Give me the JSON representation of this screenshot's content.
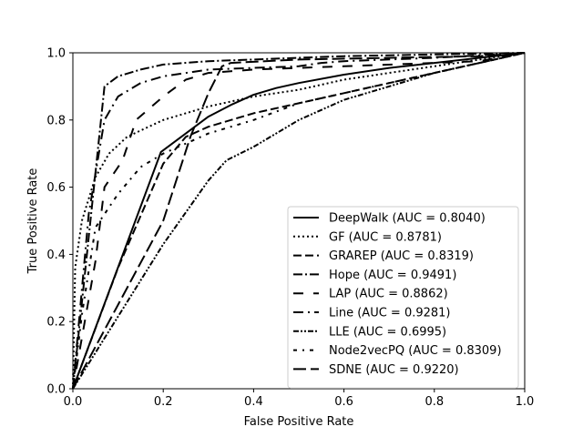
{
  "chart_data": {
    "type": "line",
    "xlabel": "False Positive Rate",
    "ylabel": "True Positive Rate",
    "xlim": [
      0.0,
      1.0
    ],
    "ylim": [
      0.0,
      1.0
    ],
    "x_ticks": [
      "0.0",
      "0.2",
      "0.4",
      "0.6",
      "0.8",
      "1.0"
    ],
    "y_ticks": [
      "0.0",
      "0.2",
      "0.4",
      "0.6",
      "0.8",
      "1.0"
    ],
    "grid": false,
    "legend_position": "lower-right",
    "series": [
      {
        "name": "DeepWalk (AUC = 0.8040)",
        "dash": "solid",
        "points": [
          [
            0,
            0
          ],
          [
            0.195,
            0.705
          ],
          [
            0.25,
            0.76
          ],
          [
            0.3,
            0.81
          ],
          [
            0.35,
            0.845
          ],
          [
            0.4,
            0.875
          ],
          [
            0.45,
            0.895
          ],
          [
            0.5,
            0.91
          ],
          [
            0.6,
            0.935
          ],
          [
            0.7,
            0.955
          ],
          [
            0.8,
            0.97
          ],
          [
            0.9,
            0.985
          ],
          [
            1,
            1
          ]
        ]
      },
      {
        "name": "GF (AUC = 0.8781)",
        "dash": "dotted",
        "points": [
          [
            0,
            0
          ],
          [
            0.005,
            0.36
          ],
          [
            0.02,
            0.5
          ],
          [
            0.05,
            0.63
          ],
          [
            0.08,
            0.7
          ],
          [
            0.12,
            0.75
          ],
          [
            0.2,
            0.8
          ],
          [
            0.3,
            0.84
          ],
          [
            0.4,
            0.87
          ],
          [
            0.5,
            0.89
          ],
          [
            0.6,
            0.92
          ],
          [
            0.7,
            0.94
          ],
          [
            0.8,
            0.96
          ],
          [
            0.9,
            0.98
          ],
          [
            1,
            1
          ]
        ]
      },
      {
        "name": "GRAREP (AUC = 0.8319)",
        "dash": "dashed",
        "points": [
          [
            0,
            0
          ],
          [
            0.1,
            0.36
          ],
          [
            0.2,
            0.67
          ],
          [
            0.25,
            0.75
          ],
          [
            0.3,
            0.78
          ],
          [
            0.4,
            0.82
          ],
          [
            0.5,
            0.85
          ],
          [
            0.6,
            0.88
          ],
          [
            0.7,
            0.91
          ],
          [
            0.8,
            0.94
          ],
          [
            0.9,
            0.97
          ],
          [
            1,
            1
          ]
        ]
      },
      {
        "name": "Hope (AUC = 0.9491)",
        "dash": "dashdot",
        "points": [
          [
            0,
            0
          ],
          [
            0.07,
            0.9
          ],
          [
            0.1,
            0.93
          ],
          [
            0.15,
            0.95
          ],
          [
            0.2,
            0.965
          ],
          [
            0.3,
            0.975
          ],
          [
            0.4,
            0.98
          ],
          [
            0.5,
            0.985
          ],
          [
            0.6,
            0.99
          ],
          [
            0.8,
            0.995
          ],
          [
            1,
            1
          ]
        ]
      },
      {
        "name": "LAP (AUC = 0.8862)",
        "dash": "loosedash",
        "points": [
          [
            0,
            0
          ],
          [
            0.05,
            0.38
          ],
          [
            0.07,
            0.6
          ],
          [
            0.11,
            0.68
          ],
          [
            0.14,
            0.8
          ],
          [
            0.2,
            0.87
          ],
          [
            0.25,
            0.92
          ],
          [
            0.3,
            0.94
          ],
          [
            0.4,
            0.95
          ],
          [
            0.6,
            0.96
          ],
          [
            0.8,
            0.97
          ],
          [
            0.9,
            0.975
          ],
          [
            1,
            1
          ]
        ]
      },
      {
        "name": "Line (AUC = 0.9281)",
        "dash": "dash-dot-long",
        "points": [
          [
            0,
            0
          ],
          [
            0.035,
            0.52
          ],
          [
            0.07,
            0.8
          ],
          [
            0.1,
            0.87
          ],
          [
            0.15,
            0.91
          ],
          [
            0.2,
            0.93
          ],
          [
            0.3,
            0.95
          ],
          [
            0.5,
            0.96
          ],
          [
            0.55,
            0.97
          ],
          [
            0.6,
            0.975
          ],
          [
            0.8,
            0.985
          ],
          [
            1,
            1
          ]
        ]
      },
      {
        "name": "LLE (AUC = 0.6995)",
        "dash": "dashdotdot",
        "points": [
          [
            0,
            0
          ],
          [
            0.2,
            0.43
          ],
          [
            0.3,
            0.62
          ],
          [
            0.34,
            0.68
          ],
          [
            0.4,
            0.72
          ],
          [
            0.5,
            0.8
          ],
          [
            0.6,
            0.86
          ],
          [
            0.7,
            0.9
          ],
          [
            0.8,
            0.94
          ],
          [
            0.9,
            0.97
          ],
          [
            1,
            1
          ]
        ]
      },
      {
        "name": "Node2vecPQ (AUC = 0.8309)",
        "dash": "dashdot-loose",
        "points": [
          [
            0,
            0
          ],
          [
            0.02,
            0.22
          ],
          [
            0.05,
            0.48
          ],
          [
            0.1,
            0.58
          ],
          [
            0.15,
            0.66
          ],
          [
            0.2,
            0.7
          ],
          [
            0.3,
            0.76
          ],
          [
            0.4,
            0.8
          ],
          [
            0.5,
            0.85
          ],
          [
            0.6,
            0.88
          ],
          [
            0.7,
            0.91
          ],
          [
            0.8,
            0.94
          ],
          [
            0.9,
            0.97
          ],
          [
            1,
            1
          ]
        ]
      },
      {
        "name": "SDNE (AUC = 0.9220)",
        "dash": "longdash",
        "points": [
          [
            0,
            0
          ],
          [
            0.2,
            0.5
          ],
          [
            0.26,
            0.75
          ],
          [
            0.3,
            0.88
          ],
          [
            0.33,
            0.96
          ],
          [
            0.35,
            0.97
          ],
          [
            0.5,
            0.98
          ],
          [
            0.7,
            0.985
          ],
          [
            0.9,
            0.99
          ],
          [
            1,
            1
          ]
        ]
      }
    ]
  }
}
